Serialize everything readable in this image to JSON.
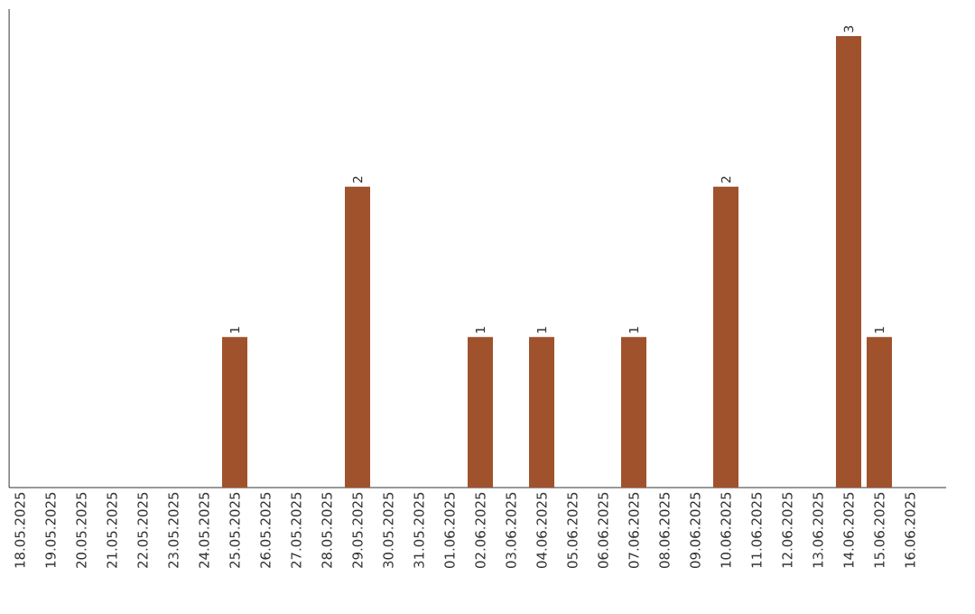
{
  "chart_data": {
    "type": "bar",
    "categories": [
      "18.05.2025",
      "19.05.2025",
      "20.05.2025",
      "21.05.2025",
      "22.05.2025",
      "23.05.2025",
      "24.05.2025",
      "25.05.2025",
      "26.05.2025",
      "27.05.2025",
      "28.05.2025",
      "29.05.2025",
      "30.05.2025",
      "31.05.2025",
      "01.06.2025",
      "02.06.2025",
      "03.06.2025",
      "04.06.2025",
      "05.06.2025",
      "06.06.2025",
      "07.06.2025",
      "08.06.2025",
      "09.06.2025",
      "10.06.2025",
      "11.06.2025",
      "12.06.2025",
      "13.06.2025",
      "14.06.2025",
      "15.06.2025",
      "16.06.2025"
    ],
    "values": [
      0,
      0,
      0,
      0,
      0,
      0,
      0,
      1,
      0,
      0,
      0,
      2,
      0,
      0,
      0,
      1,
      0,
      1,
      0,
      0,
      1,
      0,
      0,
      2,
      0,
      0,
      0,
      3,
      1,
      0
    ],
    "value_labels": [
      null,
      null,
      null,
      null,
      null,
      null,
      null,
      "1",
      null,
      null,
      null,
      "2",
      null,
      null,
      null,
      "1",
      null,
      "1",
      null,
      null,
      "1",
      null,
      null,
      "2",
      null,
      null,
      null,
      "3",
      "1",
      null
    ],
    "color": "#a0522d"
  }
}
